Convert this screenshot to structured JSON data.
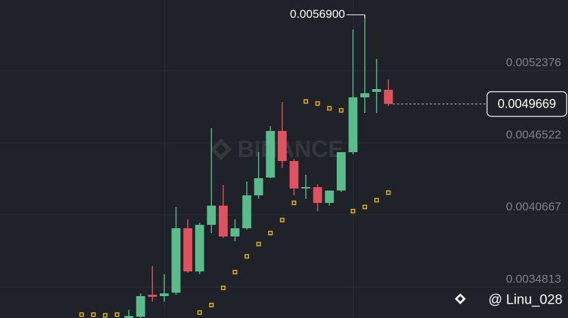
{
  "chart_data": {
    "type": "candlestick",
    "ylim": [
      0.0032311,
      0.0058102
    ],
    "yticks": [
      0.0052376,
      0.0046522,
      0.0040667,
      0.0034813
    ],
    "grid": true,
    "up_color": "#58bd8a",
    "down_color": "#e0525f",
    "open": [
      null,
      null,
      null,
      null,
      0.0032308,
      0.0032419,
      0.0034198,
      0.0034087,
      0.0034365,
      0.0039591,
      0.0036088,
      0.0039869,
      0.0041425,
      0.0038923,
      0.0039591,
      0.0042259,
      0.0043704,
      0.0047484,
      0.0045038,
      0.0042815,
      0.0042926,
      0.0041647,
      0.0042648,
      0.0045761,
      0.0050208,
      0.0050653,
      0.005082
    ],
    "high": [
      null,
      null,
      null,
      null,
      0.0032975,
      0.0034309,
      0.0036533,
      0.0035866,
      0.0041314,
      0.0040313,
      0.0040035,
      0.0047707,
      0.0043093,
      0.0040313,
      0.0043371,
      0.0045761,
      0.0047873,
      0.0049819,
      0.0045205,
      0.0043927,
      0.0043148,
      0.0042648,
      0.0045761,
      0.0055712,
      0.00569,
      0.0053322,
      0.0051654
    ],
    "low": [
      null,
      null,
      null,
      null,
      0.0032308,
      0.0032308,
      0.0033642,
      0.0033642,
      0.0034198,
      0.0035977,
      0.0035866,
      0.0039201,
      0.0038812,
      0.0038534,
      0.0039479,
      0.0041981,
      0.0043649,
      0.0044482,
      0.0042259,
      0.0041981,
      0.004098,
      0.0041425,
      0.0042537,
      0.0045594,
      0.004893,
      0.004893,
      0.0049486
    ],
    "close": [
      null,
      null,
      null,
      null,
      0.0032475,
      0.0034087,
      0.0034031,
      0.0034309,
      0.0039591,
      0.0036088,
      0.0039869,
      0.0041425,
      0.0038923,
      0.0039591,
      0.0042259,
      0.0043649,
      0.0047484,
      0.0045038,
      0.0042815,
      0.0042926,
      0.0041647,
      0.0042648,
      0.0045761,
      0.0050208,
      0.0050542,
      0.0050875,
      0.0049669
    ],
    "sar": {
      "color": "#f0b90b",
      "values": [
        0.0032586,
        0.0032586,
        0.003253,
        0.0032586,
        null,
        null,
        null,
        null,
        null,
        null,
        0.0032753,
        0.0033364,
        0.0034754,
        0.0036033,
        0.0037311,
        0.0038312,
        0.0039201,
        0.0040258,
        0.0041647,
        0.0049875,
        0.0049708,
        0.0049319,
        0.0049152,
        0.004098,
        0.0041314,
        0.004187,
        0.0042481
      ]
    },
    "last_price": 0.0049669,
    "max_label": {
      "value": 0.00569,
      "label": "0.0056900"
    },
    "watermark": "BINANCE",
    "credit": "@ Linu_028"
  }
}
